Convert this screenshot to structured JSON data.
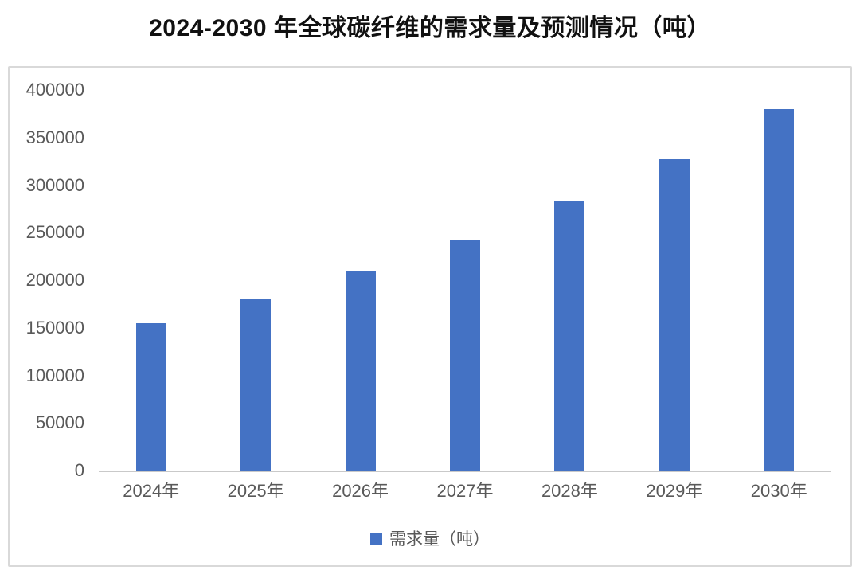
{
  "page": {
    "background": "#ffffff"
  },
  "title": "2024-2030 年全球碳纤维的需求量及预测情况（吨）",
  "chart_data": {
    "type": "bar",
    "title": "2024-2030 年全球碳纤维的需求量及预测情况（吨）",
    "categories": [
      "2024年",
      "2025年",
      "2026年",
      "2027年",
      "2028年",
      "2029年",
      "2030年"
    ],
    "values": [
      155000,
      181000,
      210000,
      243000,
      283000,
      327000,
      380000
    ],
    "series_name": "需求量（吨）",
    "legend": [
      "需求量（吨）"
    ],
    "legend_position": "bottom",
    "xlabel": "",
    "ylabel": "",
    "ylim": [
      0,
      400000
    ],
    "ytick_interval": 50000,
    "yticks": [
      0,
      50000,
      100000,
      150000,
      200000,
      250000,
      300000,
      350000,
      400000
    ],
    "grid": false,
    "bar_color": "#4472C4",
    "axis_label_color": "#595959",
    "axis_line_color": "#c9c9c9",
    "panel_border_color": "#d9d9d9"
  }
}
